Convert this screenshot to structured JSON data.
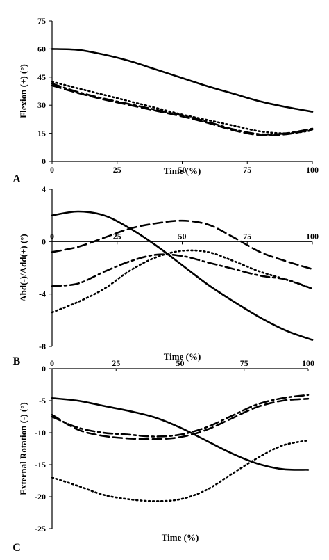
{
  "chart_data": [
    {
      "type": "line",
      "panel_letter": "A",
      "xlabel": "Time (%)",
      "ylabel": "Flexion (+) (°)",
      "xlim": [
        0,
        100
      ],
      "ylim": [
        0,
        75
      ],
      "xticks": [
        0,
        25,
        50,
        75,
        100
      ],
      "yticks": [
        0,
        15,
        30,
        45,
        60,
        75
      ],
      "x_axis_at": 0,
      "x": [
        0,
        10,
        20,
        30,
        40,
        50,
        60,
        70,
        80,
        90,
        100
      ],
      "series": [
        {
          "style": "solid",
          "values": [
            60,
            59.5,
            57,
            53.5,
            49,
            44.5,
            40,
            36,
            32,
            29,
            26.5
          ]
        },
        {
          "style": "dotted",
          "values": [
            42.5,
            39,
            35.5,
            32,
            28.5,
            25,
            22,
            19,
            16,
            15,
            16.5
          ]
        },
        {
          "style": "dashed",
          "values": [
            40.5,
            36.5,
            33,
            30,
            27,
            24,
            20.5,
            16.5,
            14,
            14.5,
            17
          ]
        },
        {
          "style": "dash-dot",
          "values": [
            41.5,
            37,
            33.5,
            30.5,
            27.5,
            24.5,
            21,
            17,
            14.5,
            15,
            17.5
          ]
        }
      ]
    },
    {
      "type": "line",
      "panel_letter": "B",
      "xlabel": "Time (%)",
      "ylabel": "Abd(-)/Add(+) (°)",
      "xlim": [
        0,
        100
      ],
      "ylim": [
        -8,
        4
      ],
      "xticks": [
        0,
        25,
        50,
        75,
        100
      ],
      "yticks": [
        -8,
        -4,
        0,
        4
      ],
      "x_axis_at": 0,
      "x": [
        0,
        10,
        20,
        30,
        40,
        50,
        60,
        70,
        80,
        90,
        100
      ],
      "series": [
        {
          "style": "solid",
          "values": [
            2.0,
            2.3,
            2.0,
            1.0,
            -0.3,
            -1.8,
            -3.3,
            -4.6,
            -5.8,
            -6.8,
            -7.5
          ]
        },
        {
          "style": "dotted",
          "values": [
            -5.4,
            -4.6,
            -3.6,
            -2.2,
            -1.2,
            -0.7,
            -0.8,
            -1.5,
            -2.3,
            -2.9,
            -3.6
          ]
        },
        {
          "style": "dashed",
          "values": [
            -0.8,
            -0.4,
            0.3,
            1.0,
            1.4,
            1.6,
            1.3,
            0.3,
            -0.8,
            -1.5,
            -2.1
          ]
        },
        {
          "style": "dash-dot",
          "values": [
            -3.4,
            -3.2,
            -2.3,
            -1.5,
            -1.0,
            -1.1,
            -1.6,
            -2.1,
            -2.6,
            -2.9,
            -3.6
          ]
        }
      ]
    },
    {
      "type": "line",
      "panel_letter": "C",
      "xlabel": "Time (%)",
      "ylabel": "External Rotation (-) (°)",
      "xlim": [
        0,
        100
      ],
      "ylim": [
        -25,
        0
      ],
      "xticks": [
        0,
        25,
        50,
        75,
        100
      ],
      "yticks": [
        -25,
        -20,
        -15,
        -10,
        -5,
        0
      ],
      "x_axis_at": 0,
      "x": [
        0,
        10,
        20,
        30,
        40,
        50,
        60,
        70,
        80,
        90,
        100
      ],
      "series": [
        {
          "style": "solid",
          "values": [
            -4.6,
            -5.0,
            -5.8,
            -6.6,
            -7.6,
            -9.2,
            -11.2,
            -13.2,
            -14.8,
            -15.7,
            -15.8
          ]
        },
        {
          "style": "dotted",
          "values": [
            -17.0,
            -18.3,
            -19.7,
            -20.4,
            -20.7,
            -20.4,
            -19.0,
            -16.5,
            -14.0,
            -12.0,
            -11.2
          ]
        },
        {
          "style": "dashed",
          "values": [
            -7.2,
            -9.5,
            -10.5,
            -10.9,
            -11.0,
            -10.7,
            -9.6,
            -7.8,
            -6.0,
            -5.0,
            -4.7
          ]
        },
        {
          "style": "dash-dot",
          "values": [
            -7.5,
            -9.2,
            -10.0,
            -10.3,
            -10.6,
            -10.3,
            -9.2,
            -7.4,
            -5.6,
            -4.6,
            -4.1
          ]
        }
      ]
    }
  ]
}
